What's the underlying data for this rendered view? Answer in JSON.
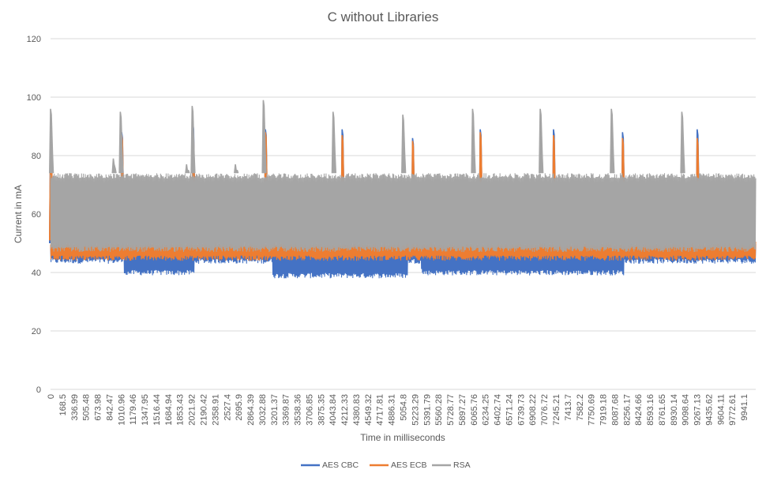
{
  "chart_data": {
    "type": "line",
    "title": "C without Libraries",
    "xlabel": "Time in milliseconds",
    "ylabel": "Current in mA",
    "ylim": [
      0,
      120
    ],
    "yticks": [
      0,
      20,
      40,
      60,
      80,
      100,
      120
    ],
    "xlim": [
      0,
      10110
    ],
    "xticks": [
      "0",
      "168.5",
      "336.99",
      "505.48",
      "673.98",
      "842.47",
      "1010.96",
      "1179.46",
      "1347.95",
      "1516.44",
      "1684.94",
      "1853.43",
      "2021.92",
      "2190.42",
      "2358.91",
      "2527.4",
      "2695.9",
      "2864.39",
      "3032.88",
      "3201.37",
      "3369.87",
      "3538.36",
      "3706.85",
      "3875.35",
      "4043.84",
      "4212.33",
      "4380.83",
      "4549.32",
      "4717.81",
      "4886.31",
      "5054.8",
      "5223.29",
      "5391.79",
      "5560.28",
      "5728.77",
      "5897.27",
      "6065.76",
      "6234.25",
      "6402.74",
      "6571.24",
      "6739.73",
      "6908.22",
      "7076.72",
      "7245.21",
      "7413.7",
      "7582.2",
      "7750.69",
      "7919.18",
      "8087.68",
      "8256.17",
      "8424.66",
      "8593.16",
      "8761.65",
      "8930.14",
      "9098.64",
      "9267.13",
      "9435.62",
      "9604.11",
      "9772.61",
      "9941.1"
    ],
    "grid": true,
    "legend_position": "bottom",
    "series": [
      {
        "name": "AES CBC",
        "color": "#4472c4",
        "band": {
          "low": [
            [
              0,
              43
            ],
            [
              1050,
              43
            ],
            [
              1060,
              39
            ],
            [
              2060,
              39
            ],
            [
              2070,
              43
            ],
            [
              3180,
              43
            ],
            [
              3190,
              38
            ],
            [
              5120,
              38
            ],
            [
              5130,
              43
            ],
            [
              5310,
              43
            ],
            [
              5320,
              39
            ],
            [
              8220,
              39
            ],
            [
              8230,
              43
            ],
            [
              10110,
              43
            ]
          ],
          "high": [
            [
              0,
              50
            ],
            [
              10110,
              50
            ]
          ]
        },
        "peaks": [
          [
            0,
            88
          ],
          [
            1020,
            88
          ],
          [
            2040,
            91
          ],
          [
            3080,
            89
          ],
          [
            4180,
            89
          ],
          [
            5190,
            86
          ],
          [
            6160,
            89
          ],
          [
            7210,
            89
          ],
          [
            8200,
            88
          ],
          [
            9270,
            89
          ]
        ]
      },
      {
        "name": "AES ECB",
        "color": "#ed7d31",
        "band": {
          "low": [
            [
              0,
              44
            ],
            [
              10110,
              44
            ]
          ],
          "high": [
            [
              0,
              51
            ],
            [
              10110,
              51
            ]
          ]
        },
        "peaks": [
          [
            0,
            86
          ],
          [
            1020,
            87
          ],
          [
            2040,
            88
          ],
          [
            3080,
            88
          ],
          [
            4180,
            87
          ],
          [
            5190,
            85
          ],
          [
            6160,
            88
          ],
          [
            7210,
            87
          ],
          [
            8200,
            86
          ],
          [
            9270,
            86
          ]
        ]
      },
      {
        "name": "RSA",
        "color": "#a5a5a5",
        "band": {
          "low": [
            [
              0,
              47
            ],
            [
              10110,
              47
            ]
          ],
          "high": [
            [
              0,
              74
            ],
            [
              10110,
              74
            ]
          ]
        },
        "peaks": [
          [
            0,
            96
          ],
          [
            900,
            79
          ],
          [
            1000,
            95
          ],
          [
            1950,
            77
          ],
          [
            2030,
            97
          ],
          [
            2650,
            77
          ],
          [
            3050,
            99
          ],
          [
            4050,
            95
          ],
          [
            5050,
            94
          ],
          [
            6050,
            96
          ],
          [
            7020,
            96
          ],
          [
            8040,
            96
          ],
          [
            9050,
            95
          ]
        ]
      }
    ]
  }
}
